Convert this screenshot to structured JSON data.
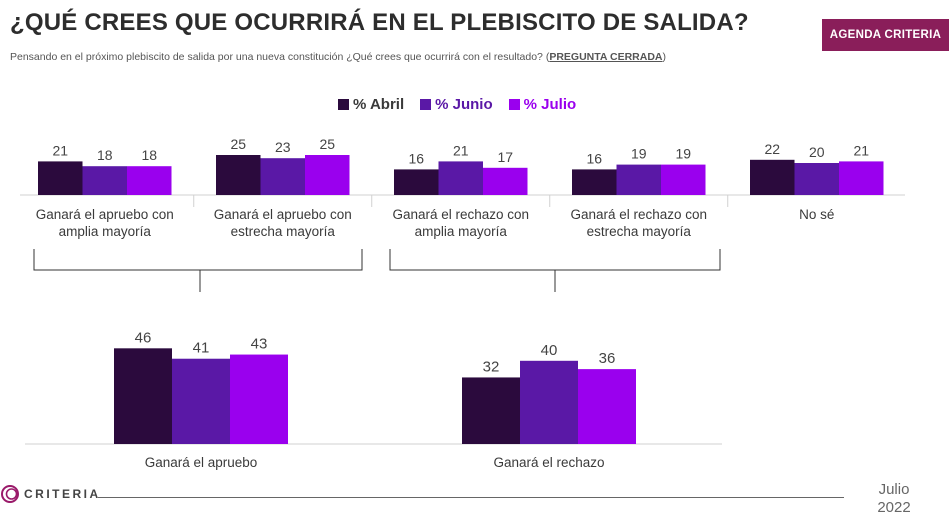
{
  "header": {
    "title": "¿QUÉ CREES QUE OCURRIRÁ EN EL PLEBISCITO DE SALIDA?",
    "subtitle_main": "Pensando en el próximo plebiscito de salida por una nueva constitución ¿Qué crees que ocurrirá con el resultado? (",
    "subtitle_closed": "PREGUNTA CERRADA",
    "subtitle_end": ")",
    "badge": "AGENDA CRITERIA"
  },
  "legend": [
    {
      "label": "% Abril",
      "color": "#2b0a3d"
    },
    {
      "label": "% Junio",
      "color": "#5a18a6"
    },
    {
      "label": "% Julio",
      "color": "#9a00ee"
    }
  ],
  "chart_data": [
    {
      "type": "bar",
      "categories": [
        [
          "Ganará el apruebo con",
          "amplia mayoría"
        ],
        [
          "Ganará el apruebo con",
          "estrecha mayoría"
        ],
        [
          "Ganará el rechazo con",
          "amplia mayoría"
        ],
        [
          "Ganará el rechazo con",
          "estrecha mayoría"
        ],
        [
          "No sé"
        ]
      ],
      "series": [
        {
          "name": "% Abril",
          "values": [
            21,
            25,
            16,
            16,
            22
          ]
        },
        {
          "name": "% Junio",
          "values": [
            18,
            23,
            21,
            19,
            20
          ]
        },
        {
          "name": "% Julio",
          "values": [
            18,
            25,
            17,
            19,
            21
          ]
        }
      ]
    },
    {
      "type": "bar",
      "categories": [
        [
          "Ganará el apruebo"
        ],
        [
          "Ganará el rechazo"
        ]
      ],
      "series": [
        {
          "name": "% Abril",
          "values": [
            46,
            32
          ]
        },
        {
          "name": "% Junio",
          "values": [
            41,
            40
          ]
        },
        {
          "name": "% Julio",
          "values": [
            43,
            36
          ]
        }
      ]
    }
  ],
  "footer": {
    "logo": "CRITERIA",
    "month": "Julio",
    "year": "2022"
  }
}
